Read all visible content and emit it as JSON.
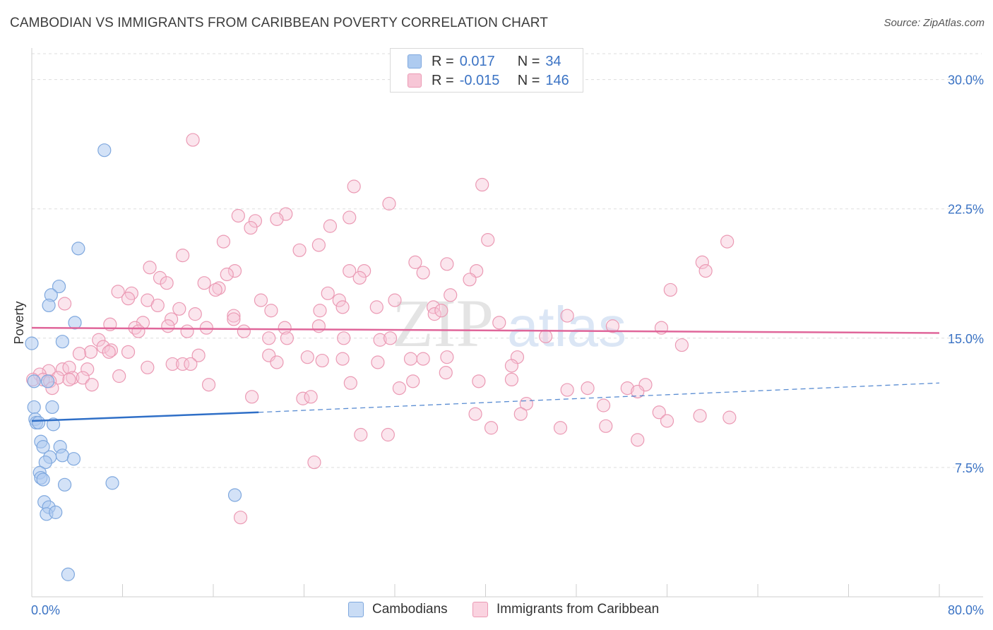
{
  "title": "CAMBODIAN VS IMMIGRANTS FROM CARIBBEAN POVERTY CORRELATION CHART",
  "source": "Source: ZipAtlas.com",
  "watermark": {
    "zip": "ZIP",
    "atlas": "atlas"
  },
  "colors": {
    "blue_fill": "#aecbf0",
    "blue_stroke": "#7fa8de",
    "blue_line": "#2f6fc7",
    "pink_fill": "#f7c6d6",
    "pink_stroke": "#eb9ab4",
    "pink_line": "#e0669a",
    "tick_label": "#3b73c4",
    "grid": "#dddddd"
  },
  "legend": {
    "rows": [
      {
        "r_label": "R =",
        "r_value": " 0.017",
        "n_label": "N =",
        "n_value": " 34"
      },
      {
        "r_label": "R =",
        "r_value": "-0.015",
        "n_label": "N =",
        "n_value": "146"
      }
    ]
  },
  "bottom_legend": {
    "series1": "Cambodians",
    "series2": "Immigrants from Caribbean"
  },
  "chart_data": {
    "type": "scatter",
    "title": "CAMBODIAN VS IMMIGRANTS FROM CARIBBEAN POVERTY CORRELATION CHART",
    "xlabel": "",
    "ylabel": "Poverty",
    "xlim": [
      0,
      80
    ],
    "ylim": [
      0,
      31.5
    ],
    "x_tick_labels": [
      "0.0%",
      "80.0%"
    ],
    "y_ticks": [
      7.5,
      15.0,
      22.5,
      30.0
    ],
    "y_tick_labels": [
      "7.5%",
      "15.0%",
      "22.5%",
      "30.0%"
    ],
    "series": [
      {
        "name": "Cambodians",
        "R": 0.017,
        "N": 34,
        "trend": {
          "x0": 0,
          "y0": 10.2,
          "x1": 20,
          "y1": 10.7,
          "dash_x1": 80,
          "dash_y1": 12.4
        },
        "points": [
          [
            6.4,
            25.9
          ],
          [
            4.1,
            20.2
          ],
          [
            2.4,
            18.0
          ],
          [
            1.7,
            17.5
          ],
          [
            1.5,
            16.9
          ],
          [
            3.8,
            15.9
          ],
          [
            0.0,
            14.7
          ],
          [
            2.7,
            14.8
          ],
          [
            1.4,
            12.5
          ],
          [
            0.2,
            11.0
          ],
          [
            1.8,
            11.0
          ],
          [
            0.3,
            10.3
          ],
          [
            0.4,
            10.1
          ],
          [
            0.6,
            10.1
          ],
          [
            1.9,
            10.0
          ],
          [
            0.8,
            9.0
          ],
          [
            1.0,
            8.7
          ],
          [
            2.5,
            8.7
          ],
          [
            2.7,
            8.2
          ],
          [
            1.6,
            8.1
          ],
          [
            3.7,
            8.0
          ],
          [
            1.2,
            7.8
          ],
          [
            0.7,
            7.2
          ],
          [
            0.8,
            6.9
          ],
          [
            1.0,
            6.8
          ],
          [
            2.9,
            6.5
          ],
          [
            7.1,
            6.6
          ],
          [
            1.1,
            5.5
          ],
          [
            1.5,
            5.2
          ],
          [
            1.3,
            4.8
          ],
          [
            2.1,
            4.9
          ],
          [
            17.9,
            5.9
          ],
          [
            3.2,
            1.3
          ],
          [
            0.2,
            12.5
          ]
        ]
      },
      {
        "name": "Immigrants from Caribbean",
        "R": -0.015,
        "N": 146,
        "trend": {
          "x0": 0,
          "y0": 15.6,
          "x1": 80,
          "y1": 15.3
        },
        "points": [
          [
            14.2,
            26.5
          ],
          [
            28.4,
            23.8
          ],
          [
            39.7,
            23.9
          ],
          [
            31.5,
            22.8
          ],
          [
            18.2,
            22.1
          ],
          [
            22.4,
            22.2
          ],
          [
            21.6,
            21.9
          ],
          [
            28.0,
            22.0
          ],
          [
            19.7,
            21.8
          ],
          [
            26.3,
            21.5
          ],
          [
            19.3,
            21.4
          ],
          [
            16.9,
            20.6
          ],
          [
            25.3,
            20.4
          ],
          [
            40.2,
            20.7
          ],
          [
            61.3,
            20.6
          ],
          [
            23.6,
            20.1
          ],
          [
            13.3,
            19.8
          ],
          [
            33.8,
            19.4
          ],
          [
            36.6,
            19.3
          ],
          [
            59.1,
            19.4
          ],
          [
            10.4,
            19.1
          ],
          [
            28.0,
            18.9
          ],
          [
            29.3,
            18.9
          ],
          [
            17.9,
            18.9
          ],
          [
            39.2,
            18.9
          ],
          [
            34.5,
            18.8
          ],
          [
            59.4,
            18.9
          ],
          [
            11.3,
            18.5
          ],
          [
            17.2,
            18.7
          ],
          [
            28.9,
            18.5
          ],
          [
            38.6,
            18.4
          ],
          [
            11.9,
            18.2
          ],
          [
            15.2,
            18.2
          ],
          [
            16.5,
            17.9
          ],
          [
            7.6,
            17.7
          ],
          [
            8.8,
            17.6
          ],
          [
            56.3,
            17.8
          ],
          [
            16.2,
            17.8
          ],
          [
            8.5,
            17.3
          ],
          [
            26.1,
            17.6
          ],
          [
            36.9,
            17.5
          ],
          [
            10.2,
            17.2
          ],
          [
            20.2,
            17.2
          ],
          [
            27.1,
            17.2
          ],
          [
            32.0,
            17.2
          ],
          [
            2.9,
            17.0
          ],
          [
            11.1,
            16.9
          ],
          [
            27.4,
            16.8
          ],
          [
            35.4,
            16.8
          ],
          [
            30.4,
            16.8
          ],
          [
            13.0,
            16.7
          ],
          [
            21.1,
            16.6
          ],
          [
            25.4,
            16.6
          ],
          [
            35.5,
            16.4
          ],
          [
            14.4,
            16.4
          ],
          [
            17.8,
            16.3
          ],
          [
            36.1,
            16.6
          ],
          [
            47.2,
            16.3
          ],
          [
            12.3,
            16.1
          ],
          [
            17.8,
            16.1
          ],
          [
            9.8,
            15.9
          ],
          [
            41.2,
            15.9
          ],
          [
            6.9,
            15.8
          ],
          [
            9.1,
            15.6
          ],
          [
            12.0,
            15.7
          ],
          [
            15.4,
            15.6
          ],
          [
            22.3,
            15.6
          ],
          [
            25.3,
            15.7
          ],
          [
            51.2,
            15.7
          ],
          [
            55.5,
            15.6
          ],
          [
            9.4,
            15.4
          ],
          [
            13.7,
            15.4
          ],
          [
            18.7,
            15.4
          ],
          [
            20.9,
            15.0
          ],
          [
            22.5,
            15.0
          ],
          [
            27.5,
            15.0
          ],
          [
            30.7,
            14.9
          ],
          [
            31.6,
            15.0
          ],
          [
            45.3,
            15.1
          ],
          [
            57.3,
            14.6
          ],
          [
            5.9,
            14.9
          ],
          [
            6.3,
            14.5
          ],
          [
            7.0,
            14.3
          ],
          [
            8.5,
            14.2
          ],
          [
            6.8,
            14.2
          ],
          [
            5.2,
            14.2
          ],
          [
            4.2,
            14.1
          ],
          [
            14.7,
            14.0
          ],
          [
            20.9,
            14.0
          ],
          [
            24.3,
            13.9
          ],
          [
            27.4,
            13.8
          ],
          [
            25.6,
            13.7
          ],
          [
            30.5,
            13.6
          ],
          [
            33.4,
            13.8
          ],
          [
            34.5,
            13.8
          ],
          [
            36.6,
            13.9
          ],
          [
            42.8,
            13.9
          ],
          [
            21.6,
            13.6
          ],
          [
            12.4,
            13.5
          ],
          [
            13.3,
            13.5
          ],
          [
            14.0,
            13.5
          ],
          [
            10.2,
            13.3
          ],
          [
            4.9,
            13.2
          ],
          [
            2.7,
            13.2
          ],
          [
            3.3,
            13.3
          ],
          [
            1.5,
            13.1
          ],
          [
            0.7,
            12.9
          ],
          [
            36.5,
            13.0
          ],
          [
            42.3,
            13.4
          ],
          [
            7.7,
            12.8
          ],
          [
            2.3,
            12.7
          ],
          [
            3.6,
            12.7
          ],
          [
            3.3,
            12.6
          ],
          [
            4.5,
            12.7
          ],
          [
            0.1,
            12.6
          ],
          [
            1.0,
            12.6
          ],
          [
            1.6,
            12.5
          ],
          [
            28.1,
            12.4
          ],
          [
            33.6,
            12.5
          ],
          [
            42.3,
            12.6
          ],
          [
            39.4,
            12.5
          ],
          [
            15.6,
            12.3
          ],
          [
            5.3,
            12.3
          ],
          [
            1.8,
            12.1
          ],
          [
            32.4,
            12.1
          ],
          [
            47.2,
            12.0
          ],
          [
            49.0,
            12.1
          ],
          [
            52.5,
            12.1
          ],
          [
            54.1,
            12.3
          ],
          [
            53.4,
            11.9
          ],
          [
            19.4,
            11.6
          ],
          [
            23.9,
            11.5
          ],
          [
            24.6,
            11.6
          ],
          [
            43.6,
            11.2
          ],
          [
            50.4,
            11.1
          ],
          [
            43.1,
            10.6
          ],
          [
            39.1,
            10.6
          ],
          [
            58.9,
            10.5
          ],
          [
            61.5,
            10.4
          ],
          [
            46.6,
            9.8
          ],
          [
            55.3,
            10.7
          ],
          [
            50.6,
            9.9
          ],
          [
            29.0,
            9.4
          ],
          [
            31.4,
            9.4
          ],
          [
            53.4,
            9.1
          ],
          [
            40.5,
            9.8
          ],
          [
            56.0,
            10.2
          ],
          [
            24.9,
            7.8
          ],
          [
            18.4,
            4.6
          ]
        ]
      }
    ]
  }
}
